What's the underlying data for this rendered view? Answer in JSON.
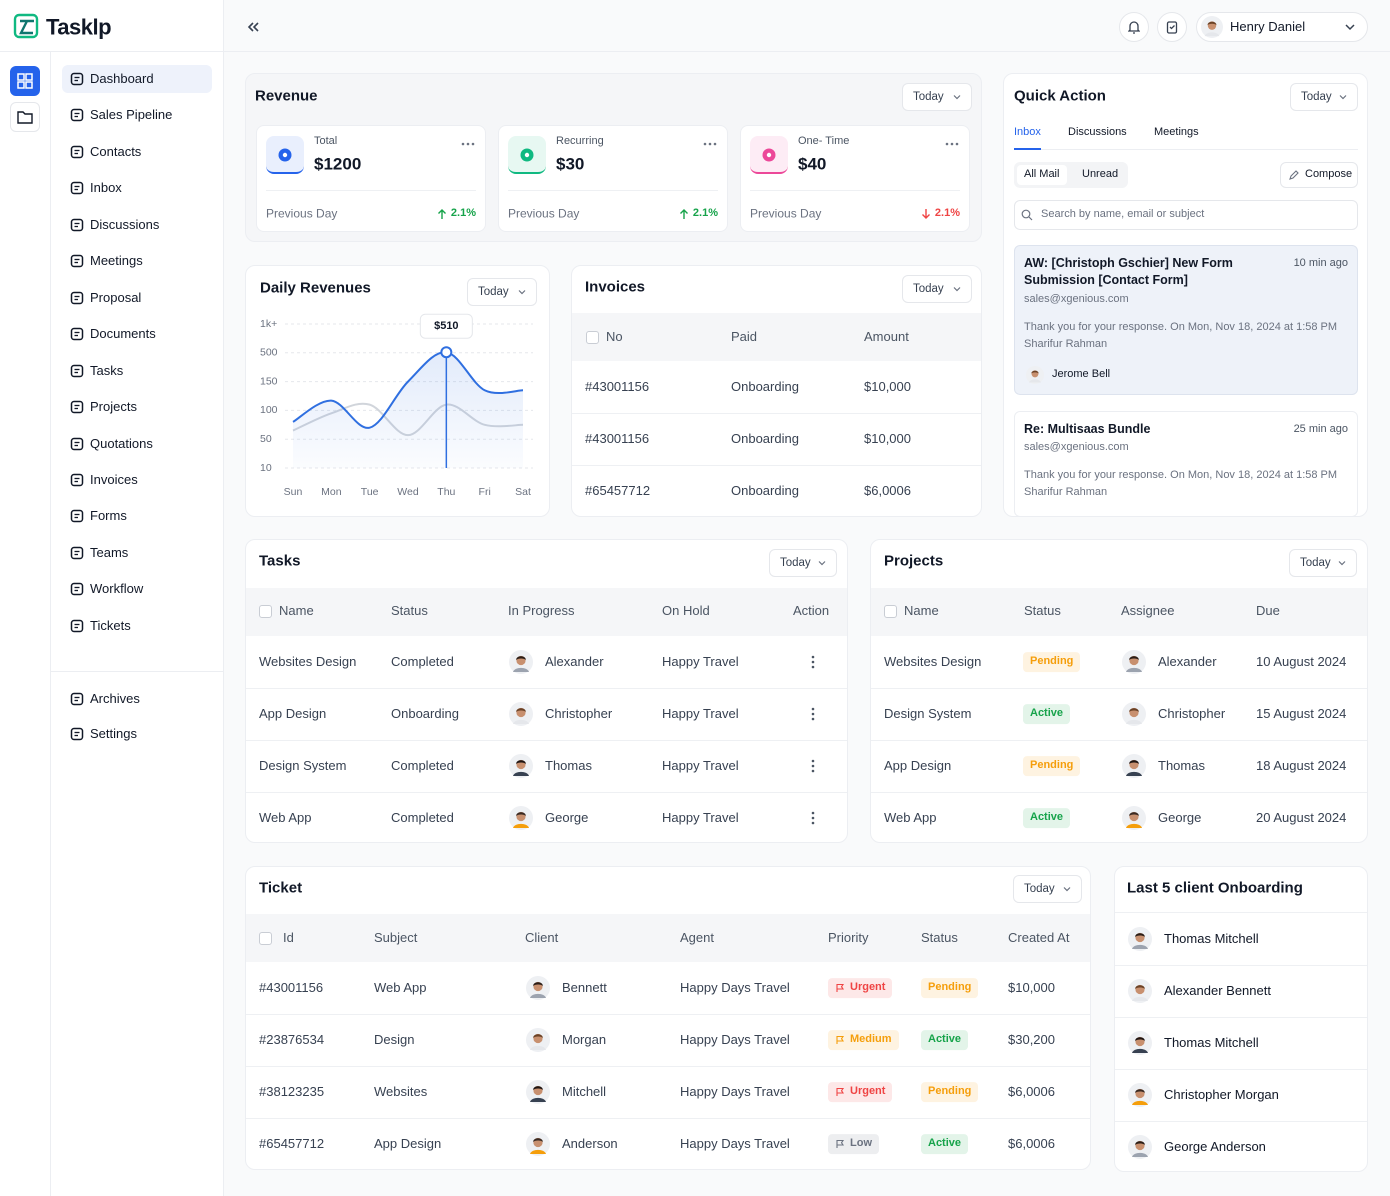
{
  "brand": "Tasklp",
  "header": {
    "user": "Henry Daniel"
  },
  "nav": [
    "Dashboard",
    "Sales Pipeline",
    "Contacts",
    "Inbox",
    "Discussions",
    "Meetings",
    "Proposal",
    "Documents",
    "Tasks",
    "Projects",
    "Quotations",
    "Invoices",
    "Forms",
    "Teams",
    "Workflow",
    "Tickets"
  ],
  "nav_bottom": [
    "Archives",
    "Settings"
  ],
  "revenue": {
    "title": "Revenue",
    "filter": "Today",
    "cards": [
      {
        "label": "Total",
        "amount": "$1200",
        "period": "Previous Day",
        "change": "2.1%",
        "trend": "up",
        "color": "#16a34a",
        "icon_color": "#2563eb"
      },
      {
        "label": "Recurring",
        "amount": "$30",
        "period": "Previous Day",
        "change": "2.1%",
        "trend": "up",
        "color": "#16a34a",
        "icon_color": "#10b981"
      },
      {
        "label": "One- Time",
        "amount": "$40",
        "period": "Previous Day",
        "change": "2.1%",
        "trend": "down",
        "color": "#ef4444",
        "icon_color": "#ec4899"
      }
    ]
  },
  "chart_data": {
    "type": "line",
    "title": "Daily Revenues",
    "filter": "Today",
    "categories": [
      "Sun",
      "Mon",
      "Tue",
      "Wed",
      "Thu",
      "Fri",
      "Sat"
    ],
    "series": [
      {
        "color": "#2f6fe0",
        "values": [
          80,
          117,
          70,
          150,
          510,
          135,
          135
        ]
      },
      {
        "color": "#d1d5db",
        "values": [
          65,
          95,
          110,
          57,
          110,
          75,
          75
        ]
      }
    ],
    "ylim": [
      10,
      1000
    ],
    "yticks": [
      10,
      50,
      100,
      150,
      500,
      {
        "value": 1000,
        "label": "1k+"
      }
    ],
    "grid": true,
    "highlight": "Thu",
    "annotation": "$510"
  },
  "invoices": {
    "title": "Invoices",
    "filter": "Today",
    "columns": [
      "No",
      "Paid",
      "Amount"
    ],
    "rows": [
      [
        "#43001156",
        "Onboarding",
        "$10,000"
      ],
      [
        "#43001156",
        "Onboarding",
        "$10,000"
      ],
      [
        "#65457712",
        "Onboarding",
        "$6,0006"
      ]
    ]
  },
  "quick_action": {
    "title": "Quick Action",
    "filter": "Today",
    "tabs": [
      "Inbox",
      "Discussions",
      "Meetings"
    ],
    "mail_filters": [
      "All Mail",
      "Unread"
    ],
    "compose": "Compose",
    "search": "Search by name, email or subject",
    "messages": [
      {
        "subject": "AW: [Christoph Gschier] New Form Submission [Contact Form]",
        "time": "10 min ago",
        "email": "sales@xgenious.com",
        "body": "Thank you for your response. On Mon, Nov 18, 2024 at 1:58 PM Sharifur Rahman",
        "sender": "Jerome Bell"
      },
      {
        "subject": "Re: Multisaas Bundle",
        "time": "25 min ago",
        "email": "sales@xgenious.com",
        "body": "Thank you for your response. On Mon, Nov 18, 2024 at 1:58 PM Sharifur Rahman"
      }
    ]
  },
  "tasks": {
    "title": "Tasks",
    "filter": "Today",
    "columns": [
      "Name",
      "Status",
      "In Progress",
      "On Hold",
      "Action"
    ],
    "rows": [
      [
        "Websites Design",
        "Completed",
        "Alexander",
        "Happy Travel"
      ],
      [
        "App Design",
        "Onboarding",
        "Christopher",
        "Happy Travel"
      ],
      [
        "Design System",
        "Completed",
        "Thomas",
        "Happy Travel"
      ],
      [
        "Web App",
        "Completed",
        "George",
        "Happy Travel"
      ]
    ]
  },
  "projects": {
    "title": "Projects",
    "filter": "Today",
    "columns": [
      "Name",
      "Status",
      "Assignee",
      "Due"
    ],
    "rows": [
      [
        "Websites Design",
        {
          "text": "Pending",
          "color": "#f59e0b"
        },
        "Alexander",
        "10 August 2024"
      ],
      [
        "Design System",
        {
          "text": "Active",
          "color": "#16a34a"
        },
        "Christopher",
        "15 August 2024"
      ],
      [
        "App Design",
        {
          "text": "Pending",
          "color": "#f59e0b"
        },
        "Thomas",
        "18 August 2024"
      ],
      [
        "Web App",
        {
          "text": "Active",
          "color": "#16a34a"
        },
        "George",
        "20 August 2024"
      ]
    ]
  },
  "ticket": {
    "title": "Ticket",
    "filter": "Today",
    "columns": [
      "Id",
      "Subject",
      "Client",
      "Agent",
      "Priority",
      "Status",
      "Created At"
    ],
    "rows": [
      [
        "#43001156",
        "Web App",
        "Bennett",
        "Happy Days Travel",
        {
          "text": "Urgent",
          "color": "#ef4444"
        },
        {
          "text": "Pending",
          "color": "#f59e0b"
        },
        "$10,000"
      ],
      [
        "#23876534",
        "Design",
        "Morgan",
        "Happy Days Travel",
        {
          "text": "Medium",
          "color": "#f59e0b"
        },
        {
          "text": "Active",
          "color": "#16a34a"
        },
        "$30,200"
      ],
      [
        "#38123235",
        "Websites",
        "Mitchell",
        "Happy Days Travel",
        {
          "text": "Urgent",
          "color": "#ef4444"
        },
        {
          "text": "Pending",
          "color": "#f59e0b"
        },
        "$6,0006"
      ],
      [
        "#65457712",
        "App Design",
        "Anderson",
        "Happy Days Travel",
        {
          "text": "Low",
          "color": "#6b7280"
        },
        {
          "text": "Active",
          "color": "#16a34a"
        },
        "$6,0006"
      ]
    ]
  },
  "onboarding": {
    "title": "Last 5 client Onboarding",
    "clients": [
      "Thomas Mitchell",
      "Alexander Bennett",
      "Thomas Mitchell",
      "Christopher Morgan",
      "George Anderson"
    ]
  }
}
